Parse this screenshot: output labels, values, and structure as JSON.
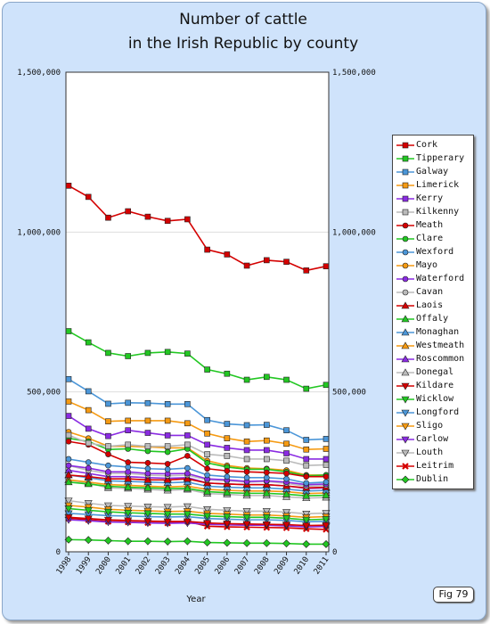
{
  "chart_data": {
    "type": "line",
    "title": "Number of cattle",
    "subtitle": "in the Irish Republic by county",
    "xlabel": "Year",
    "ylabel": "",
    "x": [
      1998,
      1999,
      2000,
      2001,
      2002,
      2003,
      2004,
      2005,
      2006,
      2007,
      2008,
      2009,
      2010,
      2011
    ],
    "ylim": [
      0,
      1500000
    ],
    "yticks": [
      0,
      500000,
      1000000,
      1500000
    ],
    "ytick_labels": [
      "0",
      "500,000",
      "1,000,000",
      "1,500,000"
    ],
    "grid": true,
    "legend_position": "right",
    "series": [
      {
        "name": "Cork",
        "color": "#d40000",
        "marker": "square",
        "values": [
          1145000,
          1110000,
          1045000,
          1065000,
          1048000,
          1035000,
          1040000,
          945000,
          930000,
          895000,
          912000,
          907000,
          880000,
          893000
        ]
      },
      {
        "name": "Tipperary",
        "color": "#22c722",
        "marker": "square",
        "values": [
          690000,
          655000,
          622000,
          612000,
          622000,
          625000,
          620000,
          570000,
          557000,
          538000,
          547000,
          538000,
          510000,
          522000
        ]
      },
      {
        "name": "Galway",
        "color": "#4b96d8",
        "marker": "square",
        "values": [
          540000,
          502000,
          463000,
          466000,
          465000,
          462000,
          462000,
          412000,
          400000,
          396000,
          397000,
          380000,
          350000,
          353000
        ]
      },
      {
        "name": "Limerick",
        "color": "#f59a12",
        "marker": "square",
        "values": [
          470000,
          443000,
          408000,
          410000,
          410000,
          410000,
          402000,
          370000,
          355000,
          345000,
          348000,
          338000,
          320000,
          322000
        ]
      },
      {
        "name": "Kerry",
        "color": "#8a2be2",
        "marker": "square",
        "values": [
          425000,
          385000,
          362000,
          380000,
          372000,
          364000,
          364000,
          335000,
          325000,
          318000,
          318000,
          308000,
          290000,
          290000
        ]
      },
      {
        "name": "Kilkenny",
        "color": "#bbbbbb",
        "marker": "square",
        "values": [
          365000,
          340000,
          330000,
          335000,
          330000,
          330000,
          335000,
          305000,
          300000,
          290000,
          290000,
          285000,
          270000,
          272000
        ]
      },
      {
        "name": "Meath",
        "color": "#d40000",
        "marker": "circle",
        "values": [
          345000,
          335000,
          305000,
          280000,
          278000,
          275000,
          300000,
          260000,
          253000,
          250000,
          248000,
          245000,
          235000,
          235000
        ]
      },
      {
        "name": "Clare",
        "color": "#22c722",
        "marker": "circle",
        "values": [
          355000,
          345000,
          320000,
          322000,
          315000,
          312000,
          322000,
          278000,
          265000,
          258000,
          258000,
          250000,
          238000,
          240000
        ]
      },
      {
        "name": "Wexford",
        "color": "#4b96d8",
        "marker": "circle",
        "values": [
          290000,
          280000,
          270000,
          265000,
          260000,
          258000,
          262000,
          240000,
          235000,
          232000,
          232000,
          228000,
          215000,
          218000
        ]
      },
      {
        "name": "Mayo",
        "color": "#f59a12",
        "marker": "circle",
        "values": [
          375000,
          355000,
          330000,
          330000,
          328000,
          325000,
          325000,
          285000,
          270000,
          262000,
          260000,
          255000,
          240000,
          240000
        ]
      },
      {
        "name": "Waterford",
        "color": "#8a2be2",
        "marker": "circle",
        "values": [
          270000,
          262000,
          250000,
          250000,
          245000,
          244000,
          245000,
          228000,
          225000,
          220000,
          222000,
          218000,
          210000,
          212000
        ]
      },
      {
        "name": "Cavan",
        "color": "#bbbbbb",
        "marker": "circle",
        "values": [
          270000,
          255000,
          245000,
          245000,
          240000,
          238000,
          240000,
          225000,
          222000,
          218000,
          220000,
          214000,
          205000,
          208000
        ]
      },
      {
        "name": "Laois",
        "color": "#d40000",
        "marker": "triangle",
        "values": [
          240000,
          235000,
          228000,
          228000,
          225000,
          225000,
          228000,
          215000,
          212000,
          210000,
          210000,
          206000,
          200000,
          202000
        ]
      },
      {
        "name": "Offaly",
        "color": "#22c722",
        "marker": "triangle",
        "values": [
          218000,
          212000,
          205000,
          202000,
          200000,
          198000,
          198000,
          188000,
          185000,
          183000,
          183000,
          180000,
          175000,
          177000
        ]
      },
      {
        "name": "Monaghan",
        "color": "#4b96d8",
        "marker": "triangle",
        "values": [
          240000,
          232000,
          222000,
          220000,
          218000,
          216000,
          218000,
          205000,
          202000,
          200000,
          200000,
          196000,
          190000,
          192000
        ]
      },
      {
        "name": "Westmeath",
        "color": "#f59a12",
        "marker": "triangle",
        "values": [
          225000,
          218000,
          210000,
          208000,
          205000,
          203000,
          205000,
          195000,
          192000,
          190000,
          190000,
          188000,
          182000,
          184000
        ]
      },
      {
        "name": "Roscommon",
        "color": "#8a2be2",
        "marker": "triangle",
        "values": [
          255000,
          245000,
          235000,
          235000,
          232000,
          230000,
          232000,
          215000,
          212000,
          210000,
          210000,
          206000,
          198000,
          200000
        ]
      },
      {
        "name": "Donegal",
        "color": "#bbbbbb",
        "marker": "triangle",
        "values": [
          225000,
          215000,
          200000,
          198000,
          195000,
          192000,
          195000,
          182000,
          180000,
          176000,
          176000,
          172000,
          168000,
          170000
        ]
      },
      {
        "name": "Kildare",
        "color": "#d40000",
        "marker": "invtriangle",
        "values": [
          108000,
          104000,
          100000,
          98000,
          96000,
          95000,
          95000,
          90000,
          88000,
          87000,
          86000,
          85000,
          82000,
          83000
        ]
      },
      {
        "name": "Wicklow",
        "color": "#22c722",
        "marker": "invtriangle",
        "values": [
          135000,
          130000,
          125000,
          122000,
          120000,
          118000,
          118000,
          112000,
          110000,
          108000,
          108000,
          105000,
          100000,
          102000
        ]
      },
      {
        "name": "Longford",
        "color": "#4b96d8",
        "marker": "invtriangle",
        "values": [
          120000,
          117000,
          113000,
          112000,
          110000,
          109000,
          110000,
          104000,
          102000,
          100000,
          100000,
          98000,
          94000,
          95000
        ]
      },
      {
        "name": "Sligo",
        "color": "#f59a12",
        "marker": "invtriangle",
        "values": [
          145000,
          140000,
          133000,
          130000,
          128000,
          126000,
          127000,
          120000,
          118000,
          115000,
          115000,
          112000,
          108000,
          110000
        ]
      },
      {
        "name": "Carlow",
        "color": "#8a2be2",
        "marker": "invtriangle",
        "values": [
          100000,
          97000,
          93000,
          92000,
          90000,
          89000,
          90000,
          86000,
          84000,
          83000,
          83000,
          81000,
          78000,
          79000
        ]
      },
      {
        "name": "Louth",
        "color": "#bbbbbb",
        "marker": "invtriangle",
        "values": [
          160000,
          152000,
          145000,
          143000,
          141000,
          140000,
          142000,
          133000,
          130000,
          127000,
          127000,
          124000,
          119000,
          121000
        ]
      },
      {
        "name": "Leitrim",
        "color": "#d40000",
        "marker": "cross",
        "values": [
          105000,
          100000,
          95000,
          93000,
          91000,
          90000,
          95000,
          80000,
          78000,
          77000,
          76000,
          75000,
          72000,
          70000
        ]
      },
      {
        "name": "Dublin",
        "color": "#22c722",
        "marker": "diamond",
        "values": [
          38000,
          37000,
          35000,
          33000,
          33000,
          32000,
          33000,
          29000,
          28000,
          27000,
          27000,
          26000,
          24000,
          24000
        ]
      }
    ]
  },
  "figure_label": "Fig 79"
}
